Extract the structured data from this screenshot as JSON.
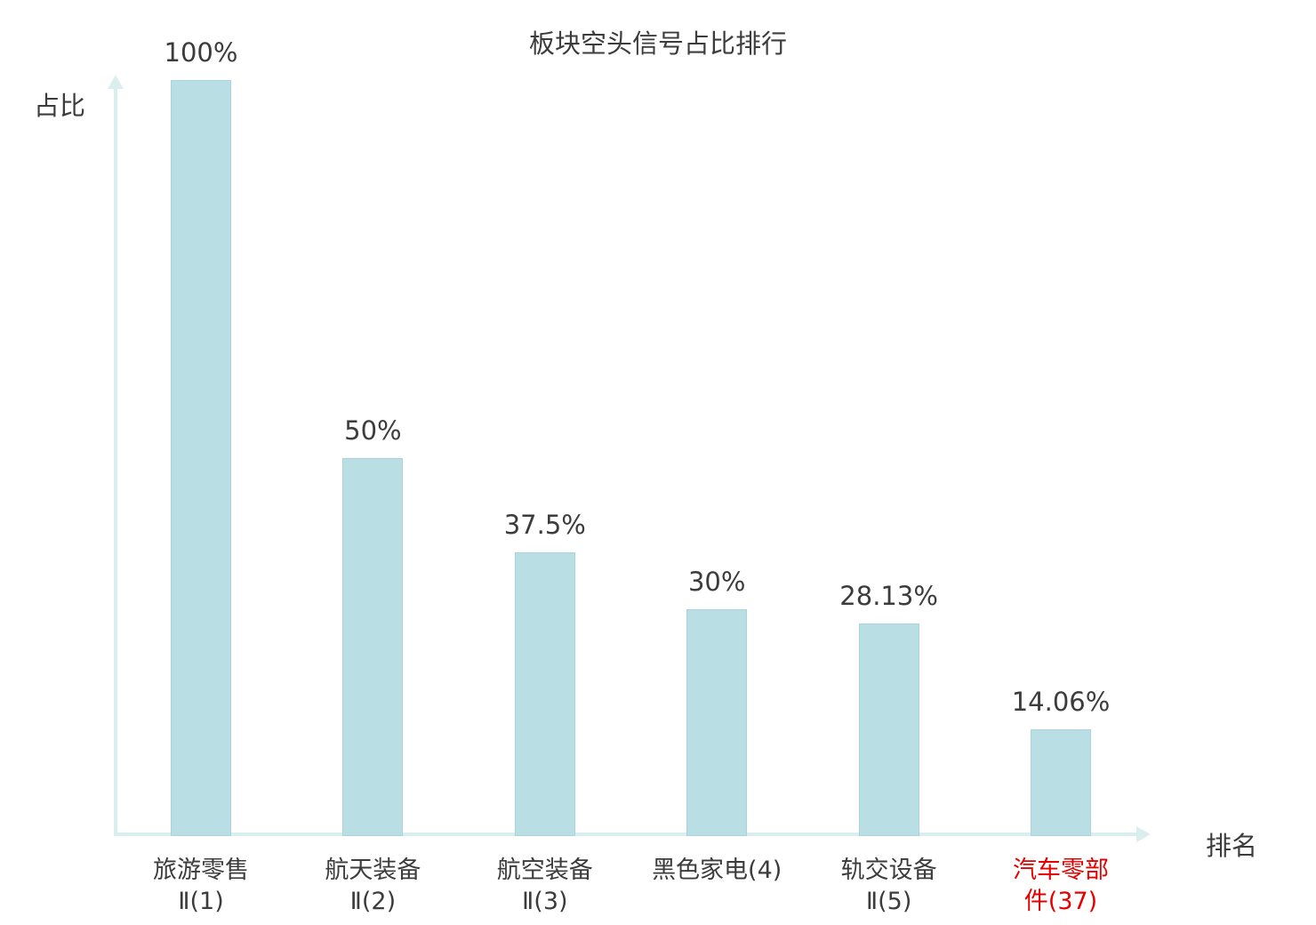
{
  "chart_data": {
    "type": "bar",
    "title": "板块空头信号占比排行",
    "xlabel": "排名",
    "ylabel": "占比",
    "ylim": [
      0,
      100
    ],
    "grid": false,
    "legend_position": "none",
    "categories": [
      "旅游零售Ⅱ(1)",
      "航天装备Ⅱ(2)",
      "航空装备Ⅱ(3)",
      "黑色家电(4)",
      "轨交设备Ⅱ(5)",
      "汽车零部件(37)"
    ],
    "category_lines": [
      [
        "旅游零售",
        "Ⅱ(1)"
      ],
      [
        "航天装备",
        "Ⅱ(2)"
      ],
      [
        "航空装备",
        "Ⅱ(3)"
      ],
      [
        "黑色家电(4)"
      ],
      [
        "轨交设备",
        "Ⅱ(5)"
      ],
      [
        "汽车零部",
        "件(37)"
      ]
    ],
    "values": [
      100,
      50,
      37.5,
      30,
      28.13,
      14.06
    ],
    "value_labels": [
      "100%",
      "50%",
      "37.5%",
      "30%",
      "28.13%",
      "14.06%"
    ],
    "highlight_index": 5,
    "colors": {
      "bar_fill": "#b9dfe4",
      "bar_border": "#a8d4da",
      "axis": "#d9efee",
      "text": "#3c3c3c",
      "highlight_text": "#e60000"
    }
  }
}
